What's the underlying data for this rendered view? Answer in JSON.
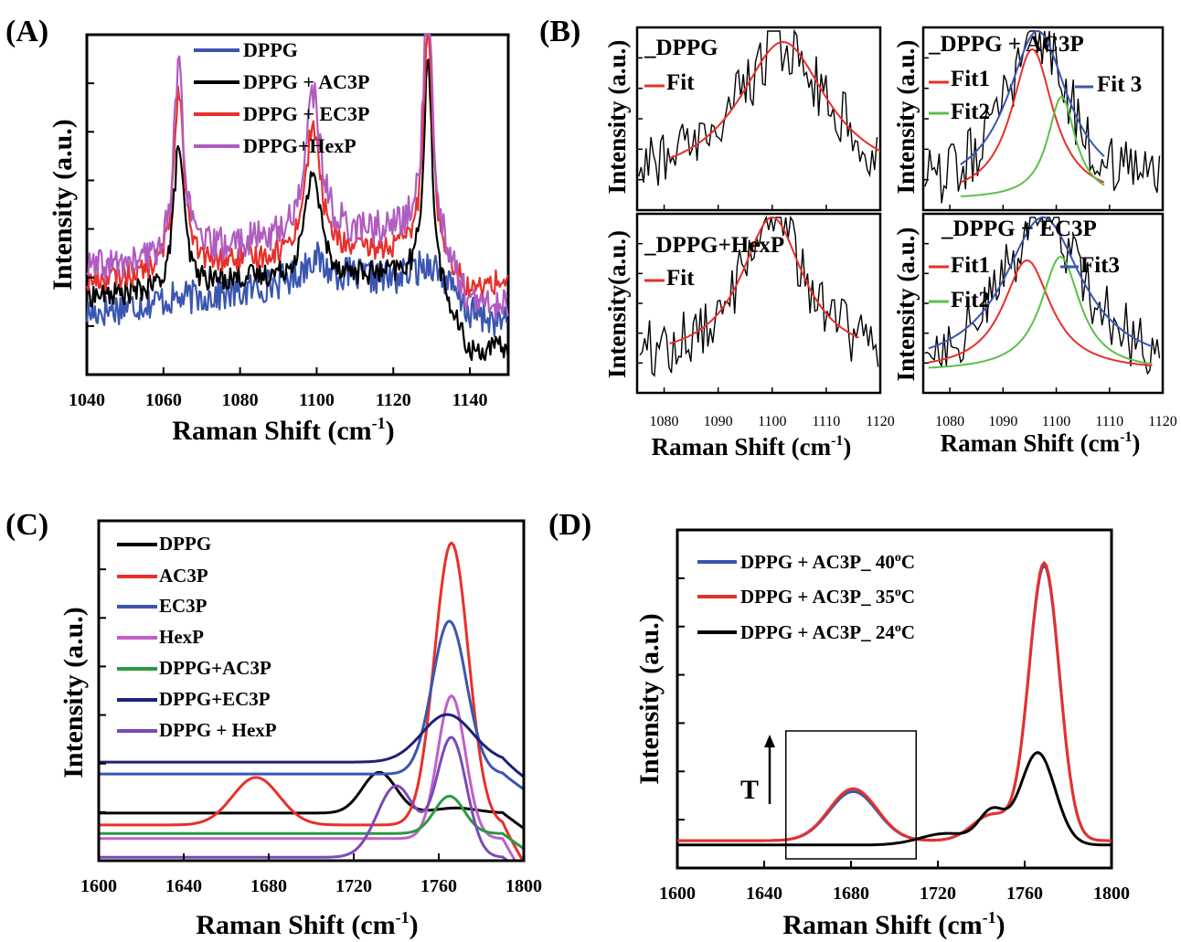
{
  "chart_data": [
    {
      "panel": "(A)",
      "type": "line",
      "xlabel": "Raman Shift (cm",
      "xlabel_sup": "-1",
      "xlabel_end": ")",
      "ylabel": "Intensity (a.u.)",
      "xlim": [
        1040,
        1150
      ],
      "ylim": [
        0,
        10
      ],
      "xticks": [
        1040,
        1060,
        1080,
        1100,
        1120,
        1140
      ],
      "legend_position": "top-left",
      "peaks": [
        [
          1064,
          1.6
        ],
        [
          1099,
          2.4
        ],
        [
          1129,
          1.3
        ]
      ],
      "series": [
        {
          "name": "DPPG",
          "color": "#3a56b0",
          "noise": 0.5,
          "values": [
            [
              1040,
              1.8
            ],
            [
              1060,
              2.2
            ],
            [
              1080,
              2.4
            ],
            [
              1100,
              3.0
            ],
            [
              1120,
              2.8
            ],
            [
              1130,
              3.3
            ],
            [
              1140,
              1.8
            ],
            [
              1150,
              1.5
            ]
          ],
          "amps": [
            0,
            0.5,
            0
          ]
        },
        {
          "name": "DPPG + AC3P",
          "color": "#000000",
          "noise": 0.35,
          "values": [
            [
              1040,
              2.3
            ],
            [
              1060,
              2.4
            ],
            [
              1080,
              2.8
            ],
            [
              1100,
              2.8
            ],
            [
              1120,
              2.9
            ],
            [
              1130,
              2.8
            ],
            [
              1140,
              0.6
            ],
            [
              1150,
              0.8
            ]
          ],
          "amps": [
            4.3,
            3.2,
            6.5
          ]
        },
        {
          "name": "DPPG + EC3P",
          "color": "#e8302a",
          "noise": 0.35,
          "values": [
            [
              1040,
              2.7
            ],
            [
              1060,
              3.0
            ],
            [
              1080,
              3.3
            ],
            [
              1100,
              3.5
            ],
            [
              1120,
              3.6
            ],
            [
              1130,
              3.8
            ],
            [
              1140,
              2.4
            ],
            [
              1150,
              2.8
            ]
          ],
          "amps": [
            5.4,
            3.8,
            6.8
          ]
        },
        {
          "name": "DPPG+HexP",
          "color": "#b05cc0",
          "noise": 0.5,
          "values": [
            [
              1040,
              3.1
            ],
            [
              1060,
              3.3
            ],
            [
              1080,
              3.8
            ],
            [
              1100,
              4.1
            ],
            [
              1120,
              4.2
            ],
            [
              1130,
              4.4
            ],
            [
              1140,
              2.0
            ],
            [
              1150,
              2.0
            ]
          ],
          "amps": [
            5.7,
            4.2,
            7.1
          ]
        }
      ]
    },
    {
      "panel": "(B)",
      "type": "line",
      "xlabel": "Raman Shift (cm",
      "xlabel_sup": "-1",
      "xlabel_end": ")",
      "xlim": [
        1075,
        1120
      ],
      "xticks": [
        1080,
        1090,
        1100,
        1110,
        1120
      ],
      "subplots": [
        {
          "id": "b1",
          "ylabel": "Intensity (a.u.)",
          "legend": [
            "DPPG",
            "Fit"
          ],
          "fits": [
            {
              "name": "Fit",
              "color": "#e8302a",
              "center": 1102,
              "height": 0.78,
              "width": 10.0,
              "base": 0.14
            }
          ]
        },
        {
          "id": "b2",
          "ylabel": "Intensity (a.u.)",
          "legend": [
            "DPPG + AC3P",
            "Fit1",
            "Fit2",
            "Fit 3"
          ],
          "fits": [
            {
              "name": "Fit1",
              "color": "#e8302a",
              "center": 1095.5,
              "height": 0.82,
              "width": 4.8,
              "base": 0.06
            },
            {
              "name": "Fit2",
              "color": "#5cc04a",
              "center": 1101.0,
              "height": 0.56,
              "width": 3.2,
              "base": 0.06
            },
            {
              "name": "Fit 3",
              "color": "#3a56b0",
              "center": 1096.5,
              "height": 0.9,
              "width": 7.0,
              "base": 0.08
            }
          ]
        },
        {
          "id": "b3",
          "ylabel": "Intensity(a.u.)",
          "legend": [
            "DPPG+HexP",
            "Fit"
          ],
          "fits": [
            {
              "name": "Fit",
              "color": "#e8302a",
              "center": 1100,
              "height": 0.8,
              "width": 7.0,
              "base": 0.18
            }
          ]
        },
        {
          "id": "b4",
          "ylabel": "Intensity (a.u.)",
          "legend": [
            "DPPG + EC3P",
            "Fit1",
            "Fit2",
            "Fit3"
          ],
          "fits": [
            {
              "name": "Fit1",
              "color": "#e8302a",
              "center": 1094.5,
              "height": 0.62,
              "width": 5.5,
              "base": 0.12
            },
            {
              "name": "Fit2",
              "color": "#5cc04a",
              "center": 1100.8,
              "height": 0.64,
              "width": 4.5,
              "base": 0.12
            },
            {
              "name": "Fit3",
              "color": "#3a56b0",
              "center": 1097.5,
              "height": 0.86,
              "width": 9.0,
              "base": 0.12
            }
          ]
        }
      ]
    },
    {
      "panel": "(C)",
      "type": "line",
      "xlabel": "Raman Shift (cm",
      "xlabel_sup": "-1",
      "xlabel_end": ")",
      "ylabel": "Intensity (a.u.)",
      "xlim": [
        1600,
        1800
      ],
      "ylim": [
        0,
        100
      ],
      "xticks": [
        1600,
        1640,
        1680,
        1720,
        1760,
        1800
      ],
      "legend_position": "top-left",
      "series": [
        {
          "name": "DPPG",
          "color": "#000000",
          "base": 14.0,
          "peaks": [
            [
              1732,
              12,
              8
            ],
            [
              1768,
              1.5,
              10
            ]
          ]
        },
        {
          "name": "AC3P",
          "color": "#e8302a",
          "base": 10.5,
          "peaks": [
            [
              1674,
              14,
              11
            ],
            [
              1766,
              83,
              8
            ]
          ]
        },
        {
          "name": "EC3P",
          "color": "#3a56b0",
          "base": 25.5,
          "peaks": [
            [
              1765,
              45,
              8
            ]
          ]
        },
        {
          "name": "HexP",
          "color": "#c060c8",
          "base": 6.5,
          "peaks": [
            [
              1766,
              42,
              6.5
            ]
          ]
        },
        {
          "name": "DPPG+AC3P",
          "color": "#2a9a40",
          "base": 8.0,
          "peaks": [
            [
              1765,
              11,
              7
            ]
          ]
        },
        {
          "name": "DPPG+EC3P",
          "color": "#20207a",
          "base": 29.0,
          "peaks": [
            [
              1764,
              14,
              12
            ]
          ]
        },
        {
          "name": "DPPG + HexP",
          "color": "#7a4ab8",
          "base": 1.0,
          "peaks": [
            [
              1740,
              21,
              9
            ],
            [
              1766,
              35,
              7
            ]
          ]
        }
      ]
    },
    {
      "panel": "(D)",
      "type": "line",
      "xlabel": "Raman Shift (cm",
      "xlabel_sup": "-1",
      "xlabel_end": ")",
      "ylabel": "Intensity (a.u.)",
      "xlim": [
        1600,
        1800
      ],
      "ylim": [
        0,
        100
      ],
      "xticks": [
        1600,
        1640,
        1680,
        1720,
        1760,
        1800
      ],
      "legend_position": "top-left",
      "annotation": "T",
      "inset_box_x": [
        1650,
        1710
      ],
      "series": [
        {
          "name": "DPPG + AC3P_ 40",
          "sup": "o",
          "unit": "C",
          "color": "#3a56b0",
          "base": 2.5,
          "peaks": [
            [
              1681,
              17,
              11
            ],
            [
              1745,
              9,
              9
            ],
            [
              1769,
              95,
              7
            ]
          ]
        },
        {
          "name": "DPPG + AC3P_ 35",
          "sup": "o",
          "unit": "C",
          "color": "#e8302a",
          "base": 2.5,
          "peaks": [
            [
              1681,
              18,
              11
            ],
            [
              1745,
              9,
              9
            ],
            [
              1769,
              96,
              7
            ]
          ]
        },
        {
          "name": "DPPG + AC3P_ 24",
          "sup": "o",
          "unit": "C",
          "color": "#000000",
          "base": 1.0,
          "peaks": [
            [
              1724,
              4,
              12
            ],
            [
              1745,
              11,
              6
            ],
            [
              1766,
              32,
              8
            ]
          ]
        }
      ]
    }
  ]
}
